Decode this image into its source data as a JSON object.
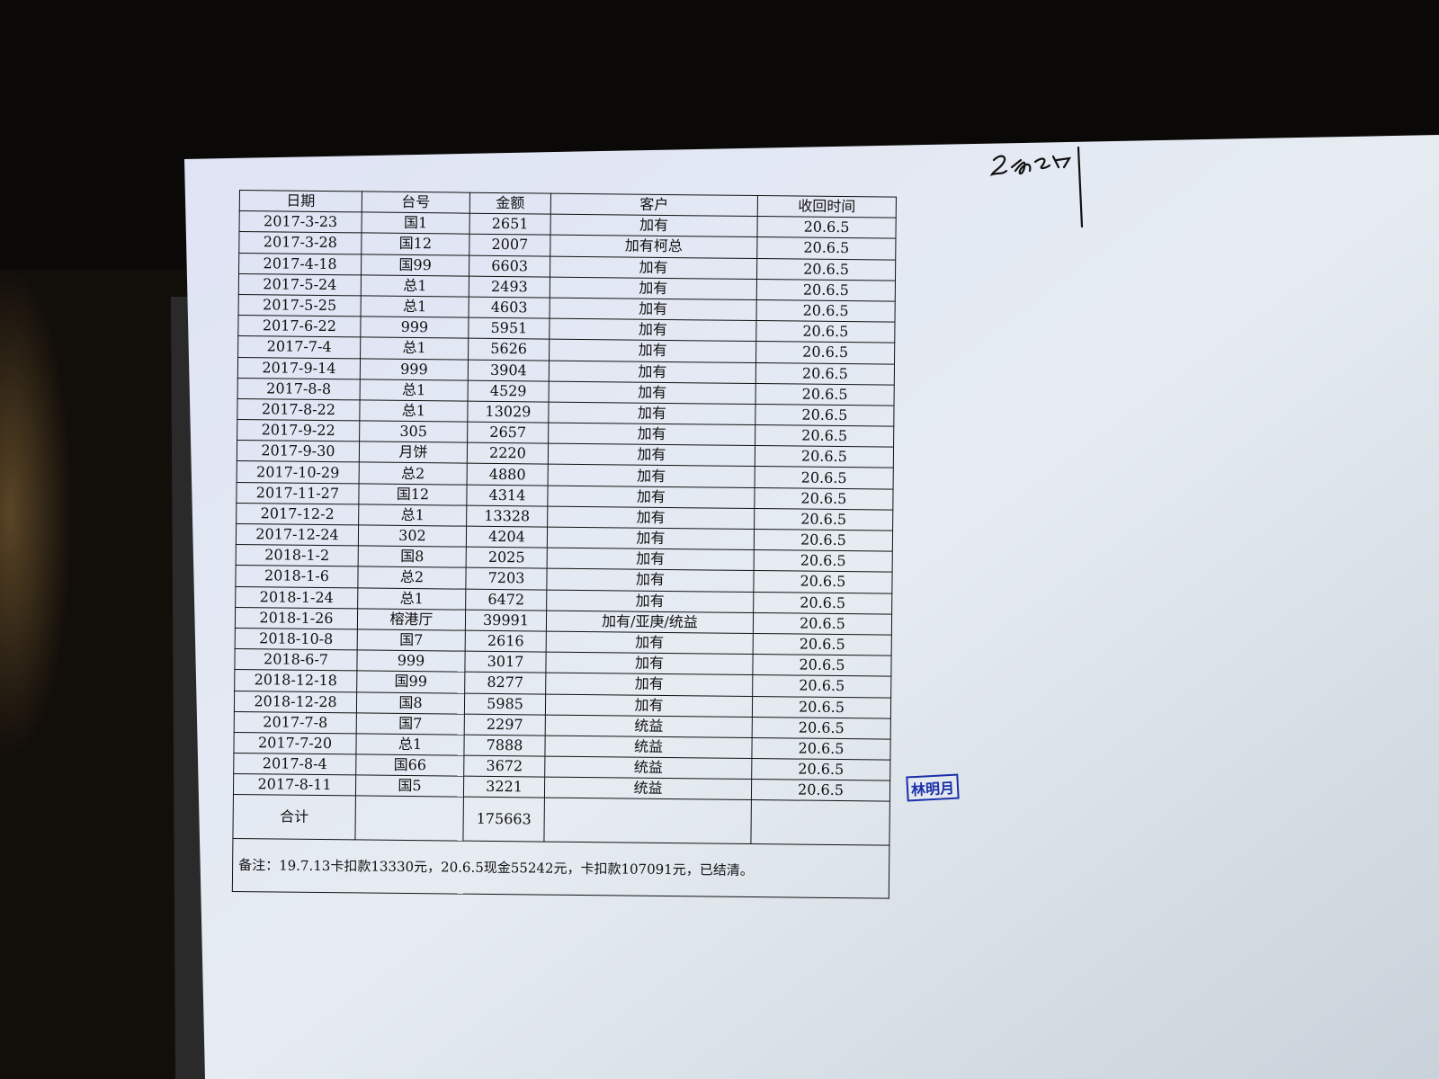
{
  "table": {
    "headers": [
      "日期",
      "台号",
      "金额",
      "客户",
      "收回时间"
    ],
    "rows": [
      [
        "2017-3-23",
        "国1",
        "2651",
        "加有",
        "20.6.5"
      ],
      [
        "2017-3-28",
        "国12",
        "2007",
        "加有柯总",
        "20.6.5"
      ],
      [
        "2017-4-18",
        "国99",
        "6603",
        "加有",
        "20.6.5"
      ],
      [
        "2017-5-24",
        "总1",
        "2493",
        "加有",
        "20.6.5"
      ],
      [
        "2017-5-25",
        "总1",
        "4603",
        "加有",
        "20.6.5"
      ],
      [
        "2017-6-22",
        "999",
        "5951",
        "加有",
        "20.6.5"
      ],
      [
        "2017-7-4",
        "总1",
        "5626",
        "加有",
        "20.6.5"
      ],
      [
        "2017-9-14",
        "999",
        "3904",
        "加有",
        "20.6.5"
      ],
      [
        "2017-8-8",
        "总1",
        "4529",
        "加有",
        "20.6.5"
      ],
      [
        "2017-8-22",
        "总1",
        "13029",
        "加有",
        "20.6.5"
      ],
      [
        "2017-9-22",
        "305",
        "2657",
        "加有",
        "20.6.5"
      ],
      [
        "2017-9-30",
        "月饼",
        "2220",
        "加有",
        "20.6.5"
      ],
      [
        "2017-10-29",
        "总2",
        "4880",
        "加有",
        "20.6.5"
      ],
      [
        "2017-11-27",
        "国12",
        "4314",
        "加有",
        "20.6.5"
      ],
      [
        "2017-12-2",
        "总1",
        "13328",
        "加有",
        "20.6.5"
      ],
      [
        "2017-12-24",
        "302",
        "4204",
        "加有",
        "20.6.5"
      ],
      [
        "2018-1-2",
        "国8",
        "2025",
        "加有",
        "20.6.5"
      ],
      [
        "2018-1-6",
        "总2",
        "7203",
        "加有",
        "20.6.5"
      ],
      [
        "2018-1-24",
        "总1",
        "6472",
        "加有",
        "20.6.5"
      ],
      [
        "2018-1-26",
        "榕港厅",
        "39991",
        "加有/亚庚/统益",
        "20.6.5"
      ],
      [
        "2018-10-8",
        "国7",
        "2616",
        "加有",
        "20.6.5"
      ],
      [
        "2018-6-7",
        "999",
        "3017",
        "加有",
        "20.6.5"
      ],
      [
        "2018-12-18",
        "国99",
        "8277",
        "加有",
        "20.6.5"
      ],
      [
        "2018-12-28",
        "国8",
        "5985",
        "加有",
        "20.6.5"
      ],
      [
        "2017-7-8",
        "国7",
        "2297",
        "统益",
        "20.6.5"
      ],
      [
        "2017-7-20",
        "总1",
        "7888",
        "统益",
        "20.6.5"
      ],
      [
        "2017-8-4",
        "国66",
        "3672",
        "统益",
        "20.6.5"
      ],
      [
        "2017-8-11",
        "国5",
        "3221",
        "统益",
        "20.6.5"
      ]
    ],
    "total_label": "合计",
    "total_amount": "175663",
    "note": "备注：19.7.13卡扣款13330元，20.6.5现金55242元，卡扣款107091元，已结清。"
  },
  "stamp": {
    "text": "林明月",
    "color": "#1a2fa8"
  },
  "signature": {
    "text": "handwritten signature"
  }
}
